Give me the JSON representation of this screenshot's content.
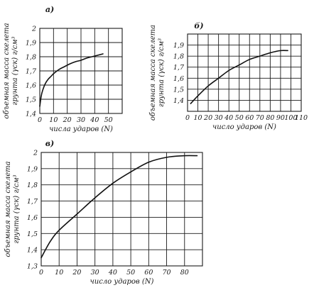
{
  "chart_data": [
    {
      "type": "line",
      "panel_label": "а)",
      "xlabel": "числа ударов (N)",
      "ylabel_line1": "объемная масса скелета",
      "ylabel_line2": "грунта (γск) г/см³",
      "xlim": [
        0,
        60
      ],
      "ylim": [
        1.4,
        2.0
      ],
      "x_ticks": [
        0,
        10,
        20,
        30,
        40,
        50
      ],
      "y_ticks": [
        1.4,
        1.5,
        1.6,
        1.7,
        1.8,
        1.9,
        2.0
      ],
      "x_tick_labels": [
        "0",
        "10",
        "20",
        "30",
        "40",
        "50"
      ],
      "y_tick_labels": [
        "1,4",
        "1,5",
        "1,6",
        "1,7",
        "1,8",
        "1,9",
        "2"
      ],
      "series": [
        {
          "x": [
            0,
            1,
            2,
            4,
            6,
            8,
            10,
            14,
            18,
            22,
            26,
            30,
            34,
            38,
            42,
            46
          ],
          "y": [
            1.45,
            1.52,
            1.56,
            1.61,
            1.64,
            1.66,
            1.68,
            1.71,
            1.73,
            1.75,
            1.765,
            1.775,
            1.79,
            1.8,
            1.81,
            1.82
          ]
        }
      ]
    },
    {
      "type": "line",
      "panel_label": "б)",
      "xlabel": "число ударов (N)",
      "ylabel_line1": "объемная масса скелета",
      "ylabel_line2": "грунта (γск) г/см³",
      "xlim": [
        0,
        110
      ],
      "ylim": [
        1.3,
        2.0
      ],
      "x_ticks": [
        0,
        10,
        20,
        30,
        40,
        50,
        60,
        70,
        80,
        90,
        100,
        110
      ],
      "y_ticks": [
        1.4,
        1.5,
        1.6,
        1.7,
        1.8,
        1.9
      ],
      "x_tick_labels": [
        "0",
        "10",
        "20",
        "30",
        "40",
        "50",
        "60",
        "70",
        "80",
        "90",
        "100",
        "110"
      ],
      "y_tick_labels": [
        "1,4",
        "1,5",
        "1,6",
        "1,7",
        "1,8",
        "1,9"
      ],
      "series": [
        {
          "x": [
            3,
            10,
            20,
            30,
            40,
            50,
            60,
            70,
            80,
            90,
            97
          ],
          "y": [
            1.37,
            1.44,
            1.53,
            1.6,
            1.67,
            1.72,
            1.77,
            1.8,
            1.83,
            1.85,
            1.85
          ]
        }
      ]
    },
    {
      "type": "line",
      "panel_label": "в)",
      "xlabel": "число ударов (N)",
      "ylabel_line1": "объемная масса скелета",
      "ylabel_line2": "грунта (γск) г/см³",
      "xlim": [
        0,
        90
      ],
      "ylim": [
        1.3,
        2.0
      ],
      "x_ticks": [
        0,
        10,
        20,
        30,
        40,
        50,
        60,
        70,
        80
      ],
      "y_ticks": [
        1.3,
        1.4,
        1.5,
        1.6,
        1.7,
        1.8,
        1.9,
        2.0
      ],
      "x_tick_labels": [
        "0",
        "10",
        "20",
        "30",
        "40",
        "50",
        "60",
        "70",
        "80"
      ],
      "y_tick_labels": [
        "1,3",
        "1,4",
        "1,5",
        "1,6",
        "1,7",
        "1,8",
        "1,9",
        "2"
      ],
      "series": [
        {
          "x": [
            0,
            5,
            10,
            20,
            30,
            40,
            50,
            60,
            70,
            80,
            87
          ],
          "y": [
            1.35,
            1.45,
            1.52,
            1.62,
            1.72,
            1.81,
            1.88,
            1.94,
            1.97,
            1.98,
            1.98
          ]
        }
      ]
    }
  ]
}
